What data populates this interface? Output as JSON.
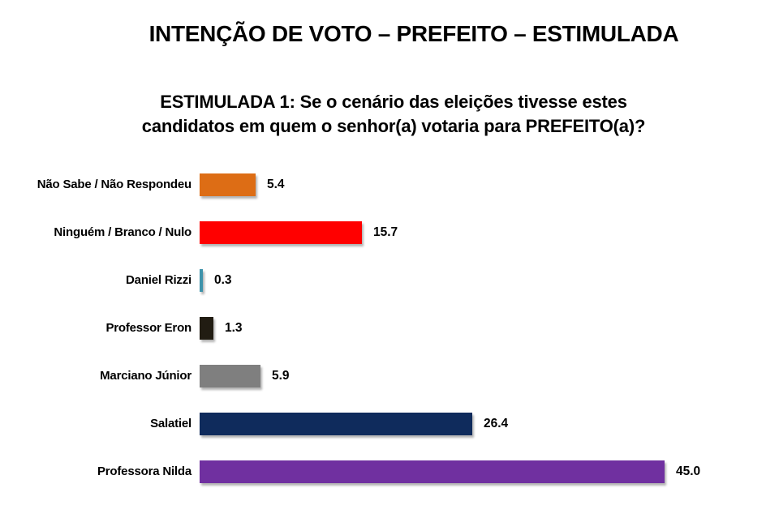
{
  "page": {
    "background": "#ffffff"
  },
  "header": {
    "title": "INTENÇÃO DE VOTO – PREFEITO – ESTIMULADA",
    "subtitle_line1": "ESTIMULADA 1: Se o cenário das eleições tivesse estes",
    "subtitle_line2": "candidatos em quem o senhor(a) votaria para PREFEITO(a)?"
  },
  "chart_data": {
    "type": "bar",
    "orientation": "horizontal",
    "title": "INTENÇÃO DE VOTO – PREFEITO – ESTIMULADA",
    "question": "ESTIMULADA 1: Se o cenário das eleições tivesse estes candidatos em quem o senhor(a) votaria para PREFEITO(a)?",
    "categories": [
      "Não Sabe / Não Respondeu",
      "Ninguém / Branco / Nulo",
      "Daniel Rizzi",
      "Professor Eron",
      "Marciano Júnior",
      "Salatiel",
      "Professora Nilda"
    ],
    "values": [
      5.4,
      15.7,
      0.3,
      1.3,
      5.9,
      26.4,
      45.0
    ],
    "value_labels": [
      "5.4",
      "15.7",
      "0.3",
      "1.3",
      "5.9",
      "26.4",
      "45.0"
    ],
    "bar_colors": [
      "#DD6D15",
      "#FF0000",
      "#3E93AB",
      "#211C12",
      "#7F7F7F",
      "#0F2B5C",
      "#7030A0"
    ],
    "xlabel": "",
    "ylabel": "",
    "xlim": [
      0,
      47
    ],
    "grid": false,
    "axis_visible": false,
    "data_labels": "outside-end",
    "legend": "none"
  }
}
